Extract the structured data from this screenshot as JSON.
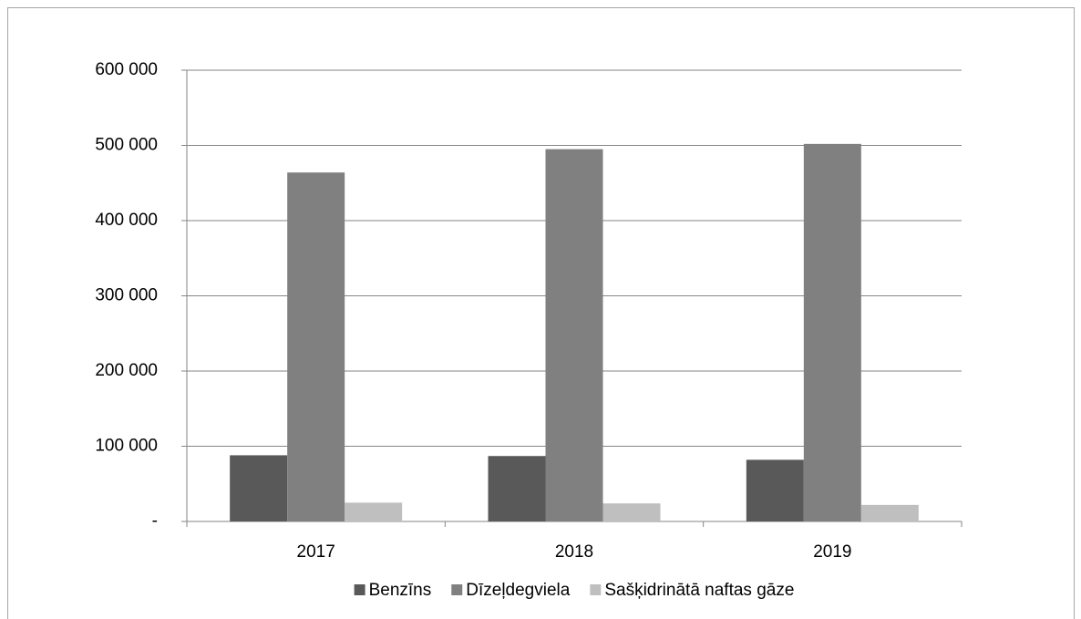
{
  "chart_data": {
    "type": "bar",
    "categories": [
      "2017",
      "2018",
      "2019"
    ],
    "series": [
      {
        "name": "Benzīns",
        "color": "#595959",
        "values": [
          88000,
          87000,
          82000
        ]
      },
      {
        "name": "Dīzeļdegviela",
        "color": "#808080",
        "values": [
          464000,
          495000,
          502000
        ]
      },
      {
        "name": "Sašķidrinātā naftas gāze",
        "color": "#bfbfbf",
        "values": [
          25000,
          24000,
          22000
        ]
      }
    ],
    "ylim": [
      0,
      600000
    ],
    "yticks": [
      {
        "value": 0,
        "label": "-"
      },
      {
        "value": 100000,
        "label": "100 000"
      },
      {
        "value": 200000,
        "label": "200 000"
      },
      {
        "value": 300000,
        "label": "300 000"
      },
      {
        "value": 400000,
        "label": "400 000"
      },
      {
        "value": 500000,
        "label": "500 000"
      },
      {
        "value": 600000,
        "label": "600 000"
      }
    ],
    "grid": true,
    "legend": "bottom"
  }
}
